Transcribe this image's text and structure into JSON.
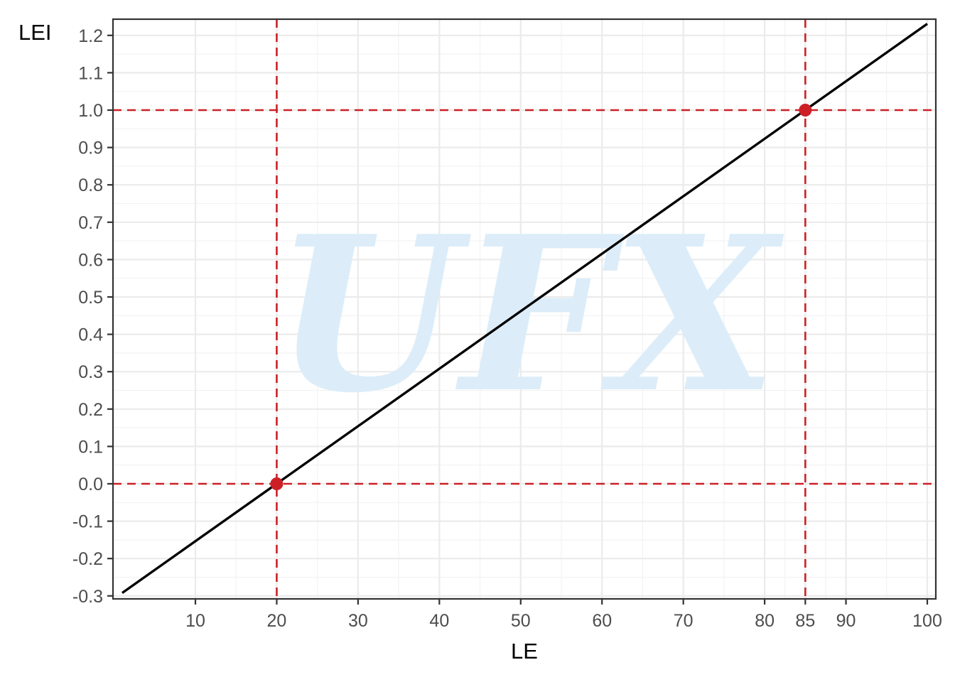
{
  "chart_data": {
    "type": "line",
    "title": "",
    "xlabel": "LE",
    "ylabel": "LEI",
    "xlim": [
      1,
      100
    ],
    "ylim": [
      -0.3,
      1.23
    ],
    "x_ticks": [
      10,
      20,
      30,
      40,
      50,
      60,
      70,
      80,
      85,
      90,
      100
    ],
    "x_tick_labels": [
      "10",
      "20",
      "30",
      "40",
      "50",
      "60",
      "70",
      "80",
      "85",
      "90",
      "100"
    ],
    "y_ticks": [
      -0.3,
      -0.2,
      -0.1,
      0.0,
      0.1,
      0.2,
      0.3,
      0.4,
      0.5,
      0.6,
      0.7,
      0.8,
      0.9,
      1.0,
      1.1,
      1.2
    ],
    "y_tick_labels": [
      "-0.3",
      "-0.2",
      "-0.1",
      "0.0",
      "0.1",
      "0.2",
      "0.3",
      "0.4",
      "0.5",
      "0.6",
      "0.7",
      "0.8",
      "0.9",
      "1.0",
      "1.1",
      "1.2"
    ],
    "grid": true,
    "series": [
      {
        "x": [
          1,
          100
        ],
        "y": [
          -0.292,
          1.231
        ],
        "color": "#000000"
      }
    ],
    "points": [
      {
        "x": 20,
        "y": 0.0,
        "color": "#cc2026"
      },
      {
        "x": 85,
        "y": 1.0,
        "color": "#cc2026"
      }
    ],
    "reference_lines": {
      "vertical": [
        20,
        85
      ],
      "horizontal": [
        0.0,
        1.0
      ],
      "color": "#cc2026",
      "style": "dashed"
    },
    "watermark": {
      "text": "UFX",
      "color": "#dcedf9"
    }
  }
}
